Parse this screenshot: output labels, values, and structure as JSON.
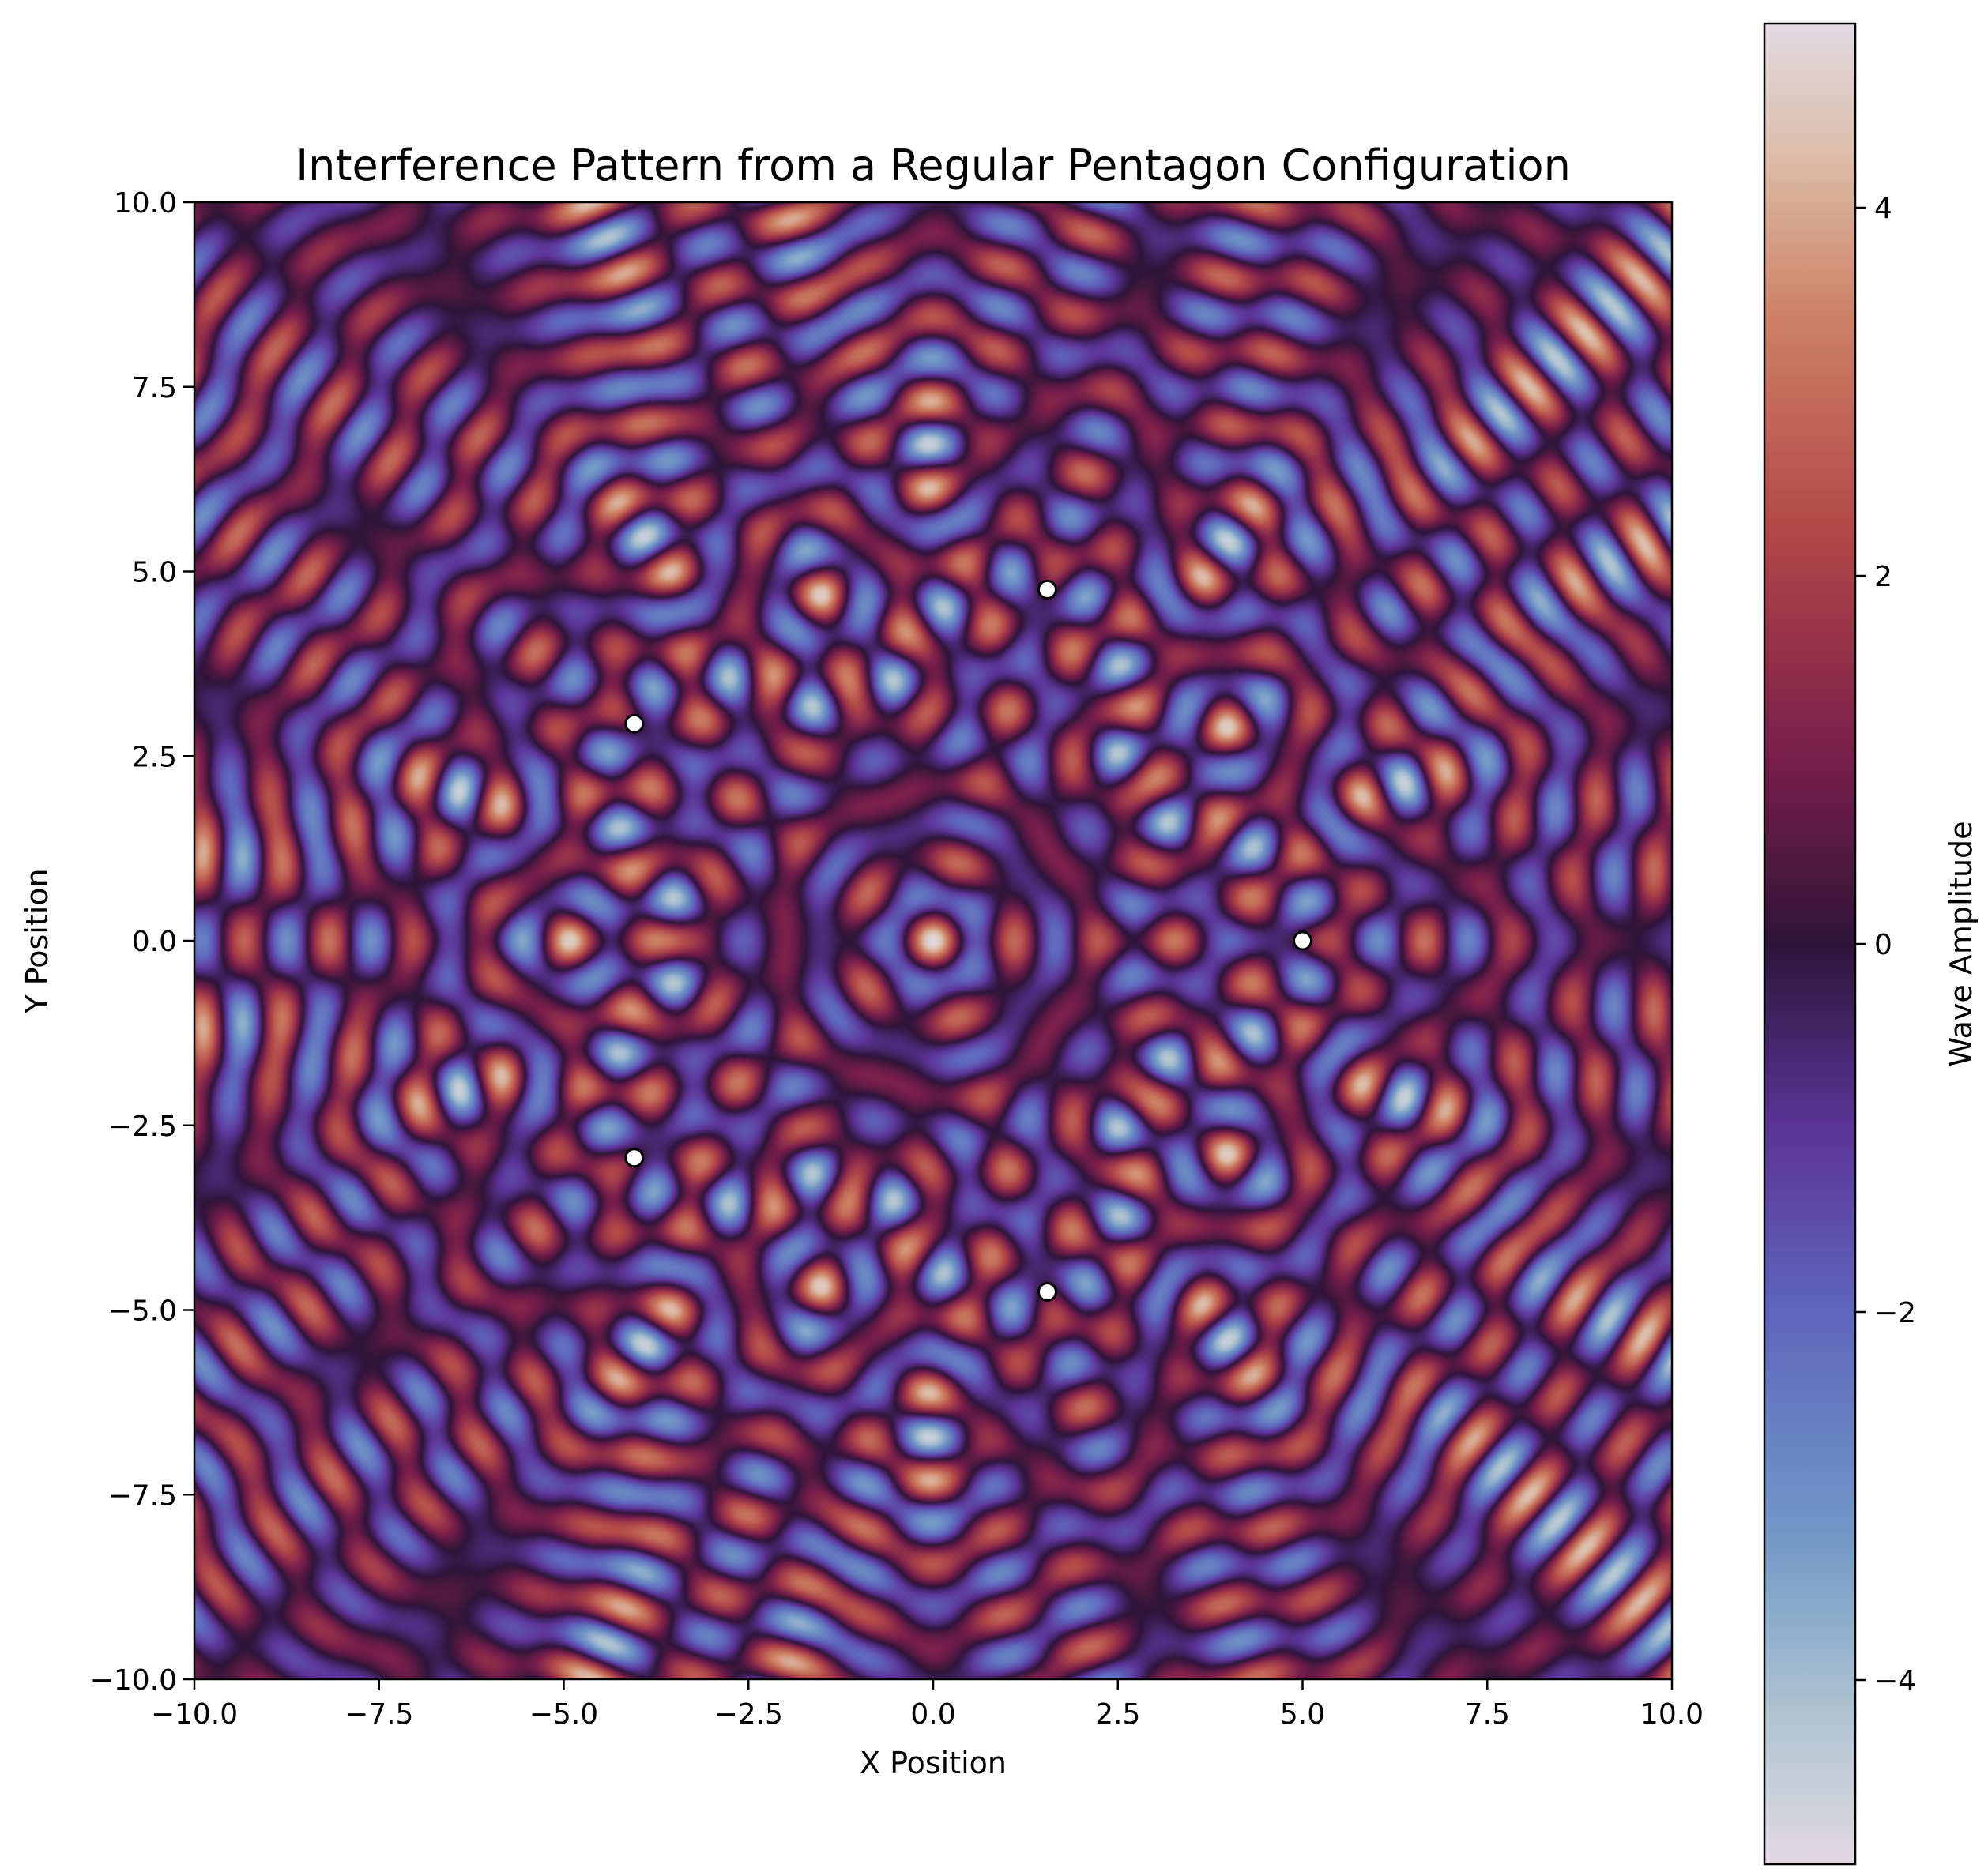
{
  "chart_data": {
    "type": "heatmap",
    "title": "Interference Pattern from a Regular Pentagon Configuration",
    "xlabel": "X Position",
    "ylabel": "Y Position",
    "xlim": [
      -10.0,
      10.0
    ],
    "ylim": [
      -10.0,
      10.0
    ],
    "x_ticks": [
      -10.0,
      -7.5,
      -5.0,
      -2.5,
      0.0,
      2.5,
      5.0,
      7.5,
      10.0
    ],
    "x_tick_labels": [
      "−10.0",
      "−7.5",
      "−5.0",
      "−2.5",
      "0.0",
      "2.5",
      "5.0",
      "7.5",
      "10.0"
    ],
    "y_ticks": [
      -10.0,
      -7.5,
      -5.0,
      -2.5,
      0.0,
      2.5,
      5.0,
      7.5,
      10.0
    ],
    "y_tick_labels": [
      "−10.0",
      "−7.5",
      "−5.0",
      "−2.5",
      "0.0",
      "2.5",
      "5.0",
      "7.5",
      "10.0"
    ],
    "grid": false,
    "colormap": "twilight",
    "colorbar": {
      "label": "Wave Amplitude",
      "range": [
        -5.0,
        5.0
      ],
      "ticks": [
        -4,
        -2,
        0,
        2,
        4
      ],
      "tick_labels": [
        "−4",
        "−2",
        "0",
        "2",
        "4"
      ]
    },
    "sources": [
      {
        "x": 5.0,
        "y": 0.0
      },
      {
        "x": 1.545,
        "y": 4.755
      },
      {
        "x": -4.045,
        "y": 2.939
      },
      {
        "x": -4.045,
        "y": -2.939
      },
      {
        "x": 1.545,
        "y": -4.755
      }
    ],
    "source_marker_color": "#ffffff",
    "source_edge_color": "#000000"
  }
}
